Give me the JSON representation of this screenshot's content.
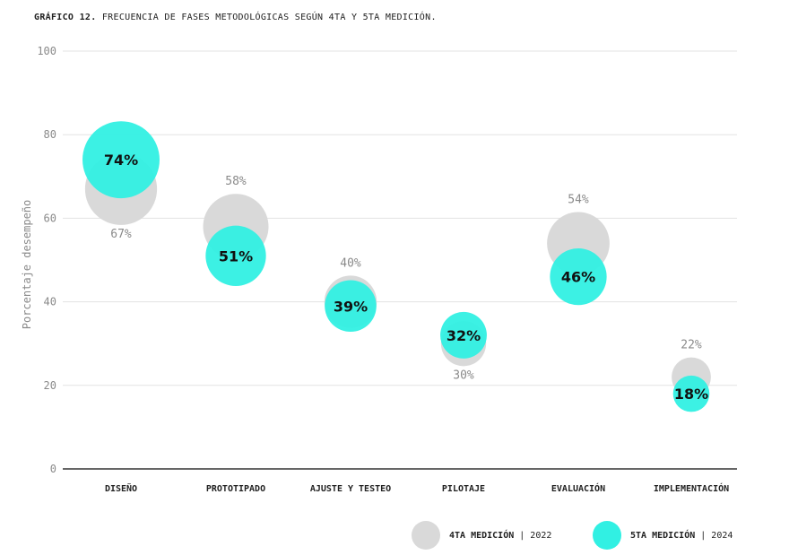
{
  "title": {
    "bold": "GRÁFICO 12.",
    "text": "FRECUENCIA DE FASES METODOLÓGICAS SEGÚN 4TA Y 5TA MEDICIÓN."
  },
  "colors": {
    "old": "#d9d9d9",
    "new": "#31f0e3",
    "grid": "#e3e3e3",
    "axis": "#333333"
  },
  "legend": [
    {
      "series": "old",
      "bold": "4TA MEDICIÓN",
      "rest": " | 2022"
    },
    {
      "series": "new",
      "bold": "5TA MEDICIÓN",
      "rest": " | 2024"
    }
  ],
  "chart_data": {
    "type": "scatter",
    "ylabel": "Porcentaje desempeño",
    "ylim": [
      0,
      100
    ],
    "yticks": [
      0,
      20,
      40,
      60,
      80,
      100
    ],
    "grid": true,
    "legend_position": "bottom-right",
    "categories": [
      "DISEÑO",
      "PROTOTIPADO",
      "AJUSTE Y TESTEO",
      "PILOTAJE",
      "EVALUACIÓN",
      "IMPLEMENTACIÓN"
    ],
    "series": [
      {
        "name": "4TA MEDICIÓN | 2022",
        "key": "old",
        "values": [
          67,
          58,
          40,
          30,
          54,
          22
        ],
        "labels": [
          "67%",
          "58%",
          "40%",
          "30%",
          "54%",
          "22%"
        ]
      },
      {
        "name": "5TA MEDICIÓN | 2024",
        "key": "new",
        "values": [
          74,
          51,
          39,
          32,
          46,
          18
        ],
        "labels": [
          "74%",
          "51%",
          "39%",
          "32%",
          "46%",
          "18%"
        ]
      }
    ]
  }
}
